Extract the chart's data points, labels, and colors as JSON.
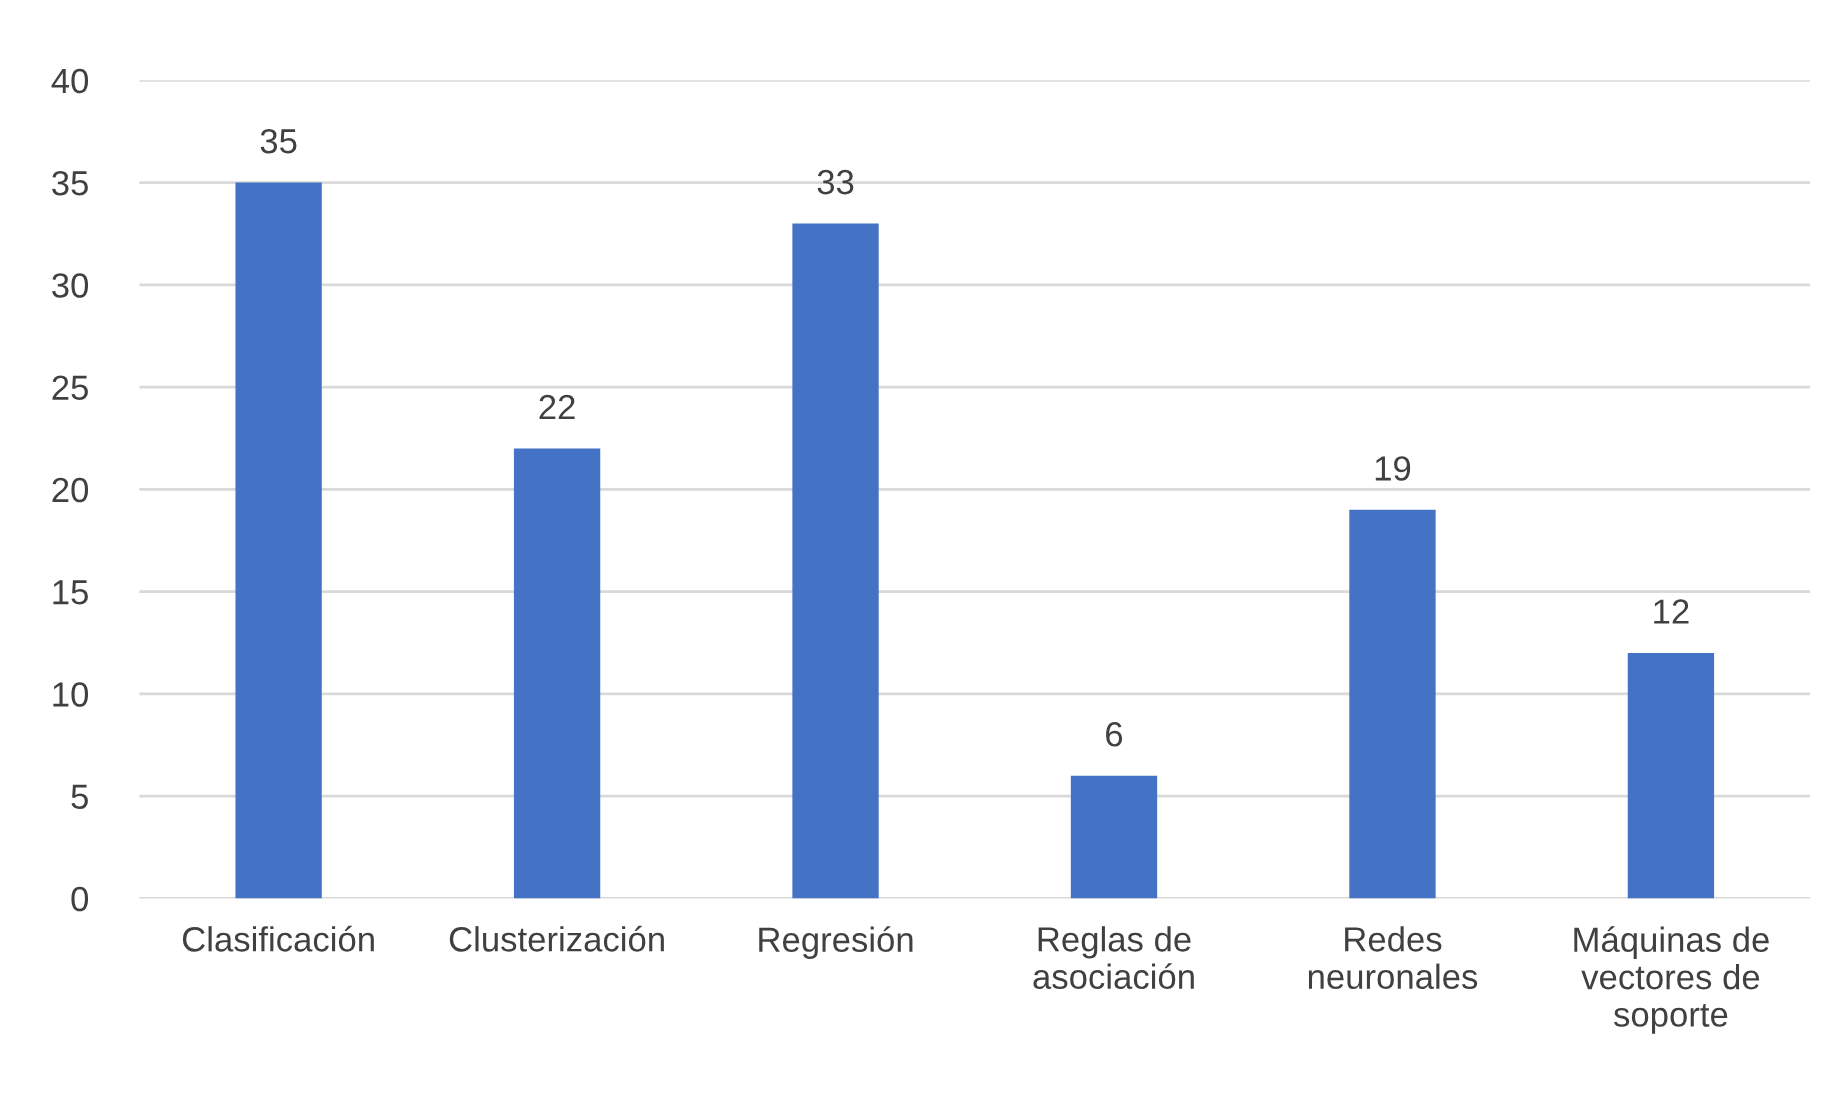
{
  "chart_data": {
    "type": "bar",
    "categories": [
      "Clasificación",
      "Clusterización",
      "Regresión",
      "Reglas de\nasociación",
      "Redes\nneuronales",
      "Máquinas de\nvectores de\nsoporte"
    ],
    "values": [
      35,
      22,
      33,
      6,
      19,
      12
    ],
    "color": "#4472c4",
    "data_labels": true,
    "grid": "y",
    "legend": false,
    "ylim": [
      0,
      40
    ],
    "yticks": [
      0,
      5,
      10,
      15,
      20,
      25,
      30,
      35,
      40
    ]
  }
}
